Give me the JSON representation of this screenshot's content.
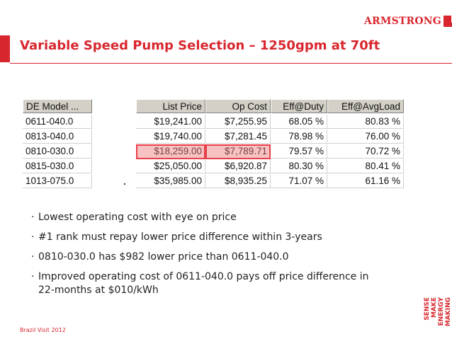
{
  "brand": {
    "logo_text": "ARMSTRONG",
    "tagline": [
      "MAKING",
      "ENERGY",
      "MAKE",
      "SENSE"
    ],
    "color": "#d8262e"
  },
  "slide": {
    "title": "Variable Speed Pump Selection – 1250gpm at 70ft",
    "footer": "Brazil Visit 2012"
  },
  "table": {
    "columns": [
      "DE Model ...",
      "",
      "List Price",
      "Op Cost",
      "Eff@Duty",
      "Eff@AvgLoad"
    ],
    "rows": [
      [
        "0611-040.0",
        "",
        "$19,241.00",
        "$7,255.95",
        "68.05 %",
        "80.83 %"
      ],
      [
        "0813-040.0",
        "",
        "$19,740.00",
        "$7,281.45",
        "78.98 %",
        "76.00 %"
      ],
      [
        "0810-030.0",
        "",
        "$18,259.00",
        "$7,789.71",
        "79.57 %",
        "70.72 %"
      ],
      [
        "0815-030.0",
        "",
        "$25,050.00",
        "$6,920.87",
        "80.30 %",
        "80.41 %"
      ],
      [
        "1013-075.0",
        "",
        "$35,985.00",
        "$8,935.25",
        "71.07 %",
        "61.16 %"
      ]
    ],
    "highlight_row": 2,
    "highlight_color": "#e8404a"
  },
  "bullets": [
    {
      "mark": "·",
      "text": "Lowest operating cost with eye on price"
    },
    {
      "mark": "·",
      "text": "#1 rank must repay lower price difference within 3-years"
    },
    {
      "mark": "·",
      "text": "0810-030.0 has $982 lower price than 0611-040.0"
    },
    {
      "mark": "·",
      "text": "Improved operating cost of 0611-040.0 pays off price difference in 22-months at $010/kWh"
    }
  ]
}
